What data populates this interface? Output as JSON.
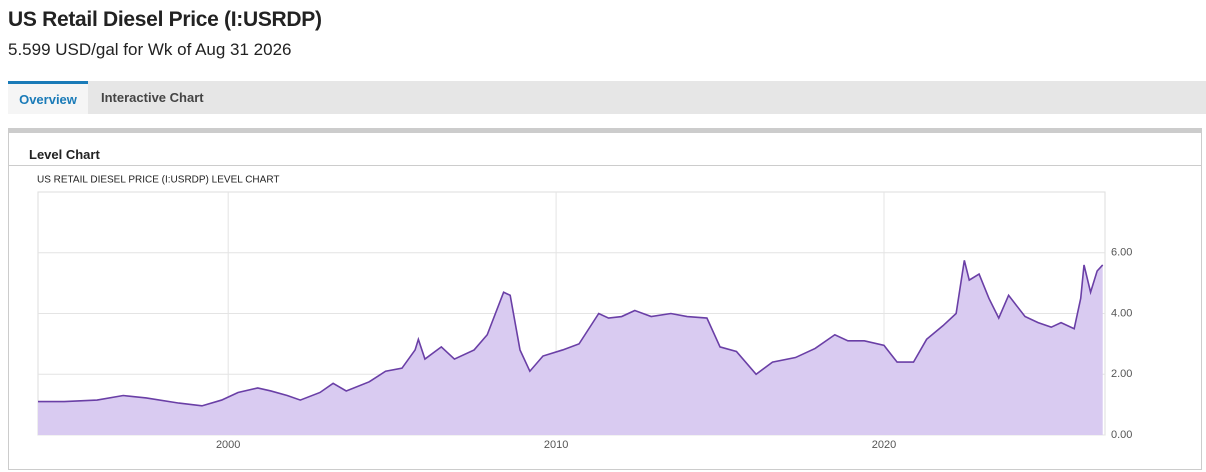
{
  "header": {
    "title": "US Retail Diesel Price (I:USRDP)",
    "subtitle": "5.599 USD/gal for Wk of Aug 31 2026"
  },
  "tabs": [
    "Overview",
    "Interactive Chart"
  ],
  "panel": {
    "title": "Level Chart"
  },
  "chart_data": {
    "type": "area",
    "title": "US RETAIL DIESEL PRICE (I:USRDP) LEVEL CHART",
    "x": [
      1994.2,
      1995,
      1996,
      1996.8,
      1997.5,
      1998.5,
      1999.2,
      1999.8,
      2000.3,
      2000.9,
      2001.3,
      2001.8,
      2002.2,
      2002.8,
      2003.2,
      2003.6,
      2004.3,
      2004.8,
      2005.3,
      2005.7,
      2005.8,
      2006.0,
      2006.5,
      2006.9,
      2007.5,
      2007.9,
      2008.4,
      2008.6,
      2008.9,
      2009.2,
      2009.6,
      2010.2,
      2010.7,
      2011.3,
      2011.6,
      2012.0,
      2012.4,
      2012.9,
      2013.5,
      2014.0,
      2014.6,
      2015.0,
      2015.5,
      2016.1,
      2016.6,
      2017.3,
      2017.9,
      2018.5,
      2018.9,
      2019.4,
      2020.0,
      2020.4,
      2020.9,
      2021.3,
      2021.8,
      2022.2,
      2022.45,
      2022.6,
      2022.9,
      2023.2,
      2023.5,
      2023.8,
      2024.3,
      2024.7,
      2025.1,
      2025.4,
      2025.8,
      2026.0,
      2026.1,
      2026.3,
      2026.5,
      2026.67
    ],
    "values": [
      1.1,
      1.1,
      1.15,
      1.3,
      1.22,
      1.05,
      0.96,
      1.15,
      1.4,
      1.55,
      1.45,
      1.3,
      1.15,
      1.4,
      1.7,
      1.45,
      1.75,
      2.1,
      2.2,
      2.8,
      3.15,
      2.5,
      2.9,
      2.5,
      2.8,
      3.3,
      4.7,
      4.6,
      2.8,
      2.1,
      2.6,
      2.8,
      3.0,
      4.0,
      3.85,
      3.9,
      4.1,
      3.9,
      4.0,
      3.9,
      3.85,
      2.9,
      2.75,
      2.0,
      2.4,
      2.55,
      2.85,
      3.3,
      3.1,
      3.1,
      2.95,
      2.4,
      2.4,
      3.15,
      3.6,
      4.0,
      5.75,
      5.1,
      5.3,
      4.5,
      3.85,
      4.6,
      3.9,
      3.7,
      3.55,
      3.7,
      3.5,
      4.5,
      5.6,
      4.7,
      5.4,
      5.6
    ],
    "color": "#6a3fa6",
    "fill_color": "#d9cbf1",
    "xlim": [
      1994.2,
      2026.74
    ],
    "xticks": [
      2000,
      2010,
      2020
    ],
    "ylim": [
      0,
      8
    ],
    "yticks": [
      {
        "value": 0,
        "label": "0.00"
      },
      {
        "value": 2,
        "label": "2.00"
      },
      {
        "value": 4,
        "label": "4.00"
      },
      {
        "value": 6,
        "label": "6.00"
      }
    ],
    "grid": true
  }
}
